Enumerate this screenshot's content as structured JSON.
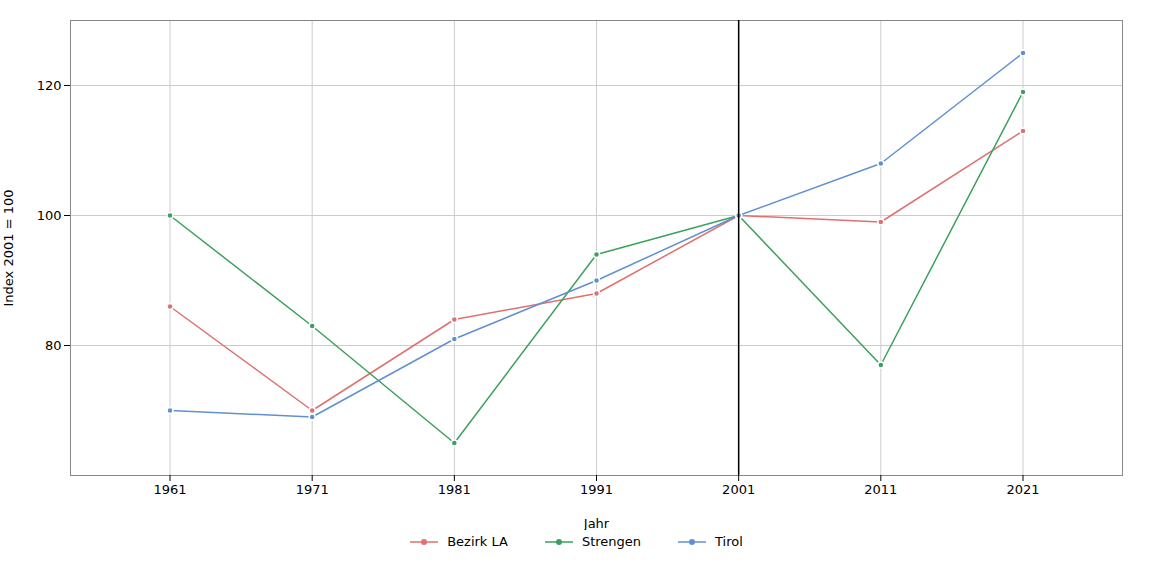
{
  "chart_data": {
    "type": "line",
    "x": [
      1961,
      1971,
      1981,
      1991,
      2001,
      2011,
      2021
    ],
    "series": [
      {
        "name": "Bezirk LA",
        "color": "#E07070",
        "values": [
          86,
          70,
          84,
          88,
          100,
          99,
          113
        ]
      },
      {
        "name": "Strengen",
        "color": "#3CA060",
        "values": [
          100,
          83,
          65,
          94,
          100,
          77,
          119
        ]
      },
      {
        "name": "Tirol",
        "color": "#6090D0",
        "values": [
          70,
          69,
          81,
          90,
          100,
          108,
          125
        ]
      }
    ],
    "xlabel": "Jahr",
    "ylabel": "Index 2001 = 100",
    "xlim": [
      1954,
      2028
    ],
    "xticks": [
      1961,
      1971,
      1981,
      1991,
      2001,
      2011,
      2021
    ],
    "ylim": [
      60,
      130
    ],
    "yticks": [
      80,
      100,
      120
    ],
    "vline_x": 2001,
    "grid": true,
    "legend": "bottom",
    "marker": "circle"
  }
}
